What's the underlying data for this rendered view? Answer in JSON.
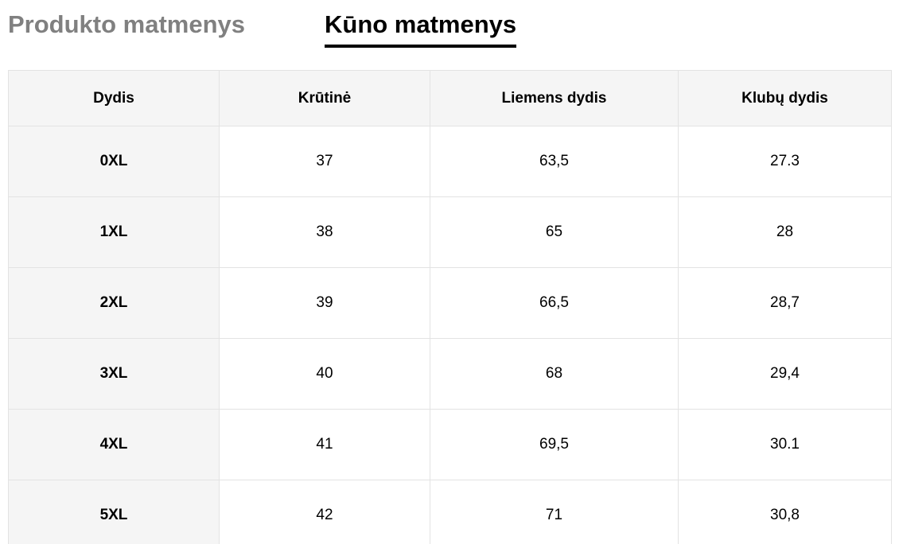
{
  "tabs": [
    "Produkto matmenys",
    "Kūno matmenys"
  ],
  "active_tab": 1,
  "table": {
    "header": [
      "Dydis",
      "Krūtinė",
      "Liemens dydis",
      "Klubų dydis"
    ],
    "rows": [
      [
        "0XL",
        "37",
        "63,5",
        "27.3"
      ],
      [
        "1XL",
        "38",
        "65",
        "28"
      ],
      [
        "2XL",
        "39",
        "66,5",
        "28,7"
      ],
      [
        "3XL",
        "40",
        "68",
        "29,4"
      ],
      [
        "4XL",
        "41",
        "69,5",
        "30.1"
      ],
      [
        "5XL",
        "42",
        "71",
        "30,8"
      ]
    ]
  }
}
